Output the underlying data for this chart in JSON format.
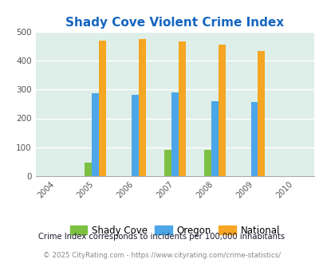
{
  "title": "Shady Cove Violent Crime Index",
  "years": [
    2004,
    2005,
    2006,
    2007,
    2008,
    2009,
    2010
  ],
  "data_years": [
    2005,
    2006,
    2007,
    2008,
    2009
  ],
  "shady_cove": [
    46,
    0,
    90,
    90,
    0
  ],
  "oregon": [
    288,
    281,
    289,
    260,
    256
  ],
  "national": [
    469,
    474,
    467,
    454,
    432
  ],
  "shady_cove_color": "#7dc142",
  "oregon_color": "#4da6e8",
  "national_color": "#f5a623",
  "bg_color": "#deeee8",
  "title_color": "#1565c0",
  "bar_width": 0.18,
  "ylim": [
    0,
    500
  ],
  "yticks": [
    0,
    100,
    200,
    300,
    400,
    500
  ],
  "footer_note": "Crime Index corresponds to incidents per 100,000 inhabitants",
  "copyright": "© 2025 CityRating.com - https://www.cityrating.com/crime-statistics/",
  "legend_labels": [
    "Shady Cove",
    "Oregon",
    "National"
  ]
}
